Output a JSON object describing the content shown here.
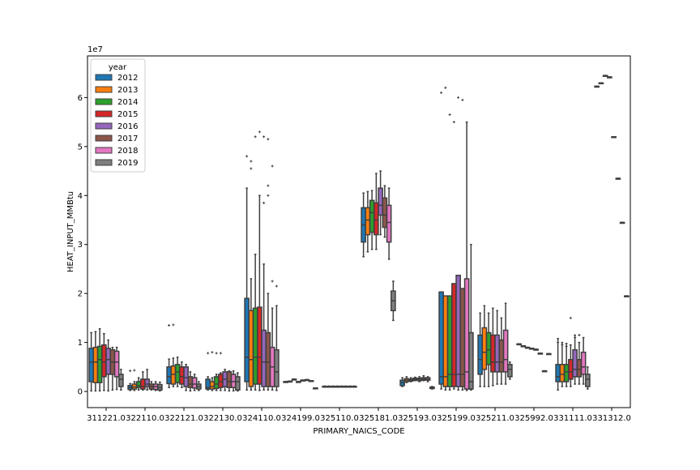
{
  "chart_data": {
    "type": "boxplot",
    "xlabel": "PRIMARY_NAICS_CODE",
    "ylabel": "HEAT_INPUT_MMBtu",
    "y_multiplier_label": "1e7",
    "ylim": [
      -0.33,
      6.85
    ],
    "yticks": [
      0,
      1,
      2,
      3,
      4,
      5,
      6
    ],
    "legend": {
      "title": "year",
      "placement": "top-left",
      "entries": [
        {
          "label": "2012",
          "color": "#1f77b4"
        },
        {
          "label": "2013",
          "color": "#ff7f0e"
        },
        {
          "label": "2014",
          "color": "#2ca02c"
        },
        {
          "label": "2015",
          "color": "#d62728"
        },
        {
          "label": "2016",
          "color": "#9467bd"
        },
        {
          "label": "2017",
          "color": "#8c564b"
        },
        {
          "label": "2018",
          "color": "#e377c2"
        },
        {
          "label": "2019",
          "color": "#7f7f7f"
        }
      ]
    },
    "categories": [
      "311221.0",
      "322110.0",
      "322121.0",
      "322130.0",
      "324110.0",
      "324199.0",
      "325110.0",
      "325181.0",
      "325193.0",
      "325199.0",
      "325211.0",
      "325992.0",
      "331111.0",
      "331312.0"
    ],
    "note_values": "values in units of 1e7 MMBtu; each box = [whisker_low, q1, median, q3, whisker_high]",
    "series": [
      {
        "name": "2012",
        "boxes": [
          [
            0.1,
            2.0,
            6.0,
            8.8,
            12.0
          ],
          [
            0.2,
            0.4,
            0.8,
            1.2,
            1.6
          ],
          [
            0.8,
            1.6,
            3.0,
            5.0,
            6.6
          ],
          [
            0.3,
            0.5,
            0.8,
            2.5,
            3.0
          ],
          [
            0.3,
            2.0,
            7.0,
            19.0,
            41.5
          ],
          [
            2.0,
            2.0,
            2.0,
            2.0,
            2.0
          ],
          [
            0.9,
            0.9,
            1.0,
            1.05,
            1.1
          ],
          [
            27.5,
            30.5,
            34.0,
            37.5,
            40.5
          ],
          [
            1.0,
            1.2,
            1.8,
            2.3,
            2.8
          ],
          [
            0.5,
            1.5,
            3.0,
            20.3,
            20.3
          ],
          [
            1.0,
            3.5,
            6.5,
            11.5,
            16.0
          ],
          [
            9.7,
            9.7,
            9.7,
            9.7,
            9.7
          ],
          [
            0.3,
            2.0,
            3.0,
            5.5,
            10.8
          ],
          [
            62.3,
            62.3,
            62.3,
            62.3,
            62.3
          ]
        ]
      },
      {
        "name": "2013",
        "boxes": [
          [
            0.1,
            1.8,
            6.0,
            9.0,
            12.2
          ],
          [
            0.2,
            0.5,
            0.9,
            1.5,
            2.0
          ],
          [
            1.0,
            1.5,
            3.5,
            5.2,
            6.8
          ],
          [
            0.2,
            0.5,
            1.0,
            2.0,
            2.8
          ],
          [
            0.3,
            1.0,
            6.5,
            16.5,
            23.0
          ],
          [
            2.1,
            2.1,
            2.1,
            2.1,
            2.1
          ],
          [
            0.9,
            0.9,
            1.0,
            1.05,
            1.1
          ],
          [
            28.5,
            32.0,
            35.0,
            37.5,
            40.8
          ],
          [
            1.8,
            2.0,
            2.3,
            2.6,
            3.0
          ],
          [
            0.3,
            1.0,
            3.0,
            19.5,
            19.5
          ],
          [
            1.0,
            4.5,
            8.0,
            13.0,
            17.5
          ],
          [
            9.3,
            9.3,
            9.3,
            9.3,
            9.3
          ],
          [
            1.0,
            2.0,
            3.5,
            5.5,
            10.0
          ],
          [
            63.0,
            63.0,
            63.0,
            63.0,
            63.0
          ]
        ]
      },
      {
        "name": "2014",
        "boxes": [
          [
            0.1,
            1.8,
            6.5,
            9.2,
            12.8
          ],
          [
            0.3,
            0.8,
            1.2,
            2.0,
            2.8
          ],
          [
            1.0,
            1.8,
            4.0,
            5.5,
            7.0
          ],
          [
            0.2,
            0.6,
            1.5,
            3.0,
            3.5
          ],
          [
            0.3,
            1.5,
            7.0,
            17.0,
            28.0
          ],
          [
            2.5,
            2.5,
            2.5,
            2.5,
            2.5
          ],
          [
            0.9,
            0.9,
            1.0,
            1.05,
            1.1
          ],
          [
            29.0,
            32.5,
            36.5,
            39.0,
            41.0
          ],
          [
            2.0,
            2.1,
            2.3,
            2.5,
            2.8
          ],
          [
            0.3,
            1.0,
            3.5,
            19.5,
            19.5
          ],
          [
            1.0,
            5.5,
            8.5,
            12.0,
            16.0
          ],
          [
            9.0,
            9.0,
            9.0,
            9.0,
            9.0
          ],
          [
            1.0,
            2.0,
            4.0,
            5.5,
            9.8
          ],
          [
            64.5,
            64.5,
            64.5,
            64.5,
            64.5
          ]
        ]
      },
      {
        "name": "2015",
        "boxes": [
          [
            0.2,
            3.0,
            6.0,
            9.5,
            11.8
          ],
          [
            0.3,
            0.5,
            1.0,
            2.5,
            4.0
          ],
          [
            0.8,
            1.5,
            3.0,
            5.0,
            6.0
          ],
          [
            0.2,
            0.8,
            2.0,
            3.5,
            3.8
          ],
          [
            0.2,
            1.5,
            7.0,
            17.2,
            40.0
          ],
          [
            2.0,
            2.0,
            2.0,
            2.0,
            2.0
          ],
          [
            0.9,
            0.9,
            1.0,
            1.05,
            1.1
          ],
          [
            29.0,
            32.0,
            35.0,
            38.5,
            44.5
          ],
          [
            2.2,
            2.3,
            2.5,
            2.7,
            2.9
          ],
          [
            0.5,
            1.0,
            3.5,
            22.0,
            22.0
          ],
          [
            1.2,
            4.0,
            6.0,
            11.5,
            17.0
          ],
          [
            8.8,
            8.8,
            8.8,
            8.8,
            8.8
          ],
          [
            1.0,
            2.5,
            4.0,
            6.5,
            9.5
          ],
          [
            64.2,
            64.2,
            64.2,
            64.2,
            64.2
          ]
        ]
      },
      {
        "name": "2016",
        "boxes": [
          [
            0.1,
            3.5,
            6.5,
            8.8,
            10.5
          ],
          [
            0.3,
            1.0,
            1.5,
            2.5,
            4.5
          ],
          [
            0.2,
            1.0,
            2.8,
            5.0,
            5.5
          ],
          [
            0.2,
            1.0,
            2.5,
            4.0,
            4.5
          ],
          [
            0.3,
            1.0,
            6.0,
            12.5,
            26.0
          ],
          [
            2.3,
            2.3,
            2.3,
            2.3,
            2.3
          ],
          [
            0.9,
            0.9,
            1.0,
            1.05,
            1.1
          ],
          [
            32.0,
            36.0,
            38.0,
            41.5,
            45.0
          ],
          [
            2.0,
            2.2,
            2.5,
            2.7,
            3.0
          ],
          [
            0.3,
            1.0,
            3.5,
            23.7,
            23.7
          ],
          [
            1.5,
            4.0,
            6.0,
            11.5,
            16.5
          ],
          [
            8.6,
            8.6,
            8.6,
            8.6,
            8.6
          ],
          [
            1.5,
            3.0,
            4.5,
            8.5,
            11.5
          ],
          [
            52.0,
            52.0,
            52.0,
            52.0,
            52.0
          ]
        ]
      },
      {
        "name": "2017",
        "boxes": [
          [
            0.3,
            3.5,
            6.0,
            8.5,
            9.0
          ],
          [
            0.3,
            0.5,
            1.0,
            1.5,
            2.0
          ],
          [
            0.1,
            0.8,
            1.5,
            3.0,
            4.0
          ],
          [
            0.1,
            0.8,
            2.0,
            4.0,
            4.2
          ],
          [
            0.3,
            1.0,
            6.0,
            12.0,
            20.0
          ],
          [
            2.4,
            2.4,
            2.4,
            2.4,
            2.4
          ],
          [
            0.9,
            0.9,
            1.0,
            1.05,
            1.1
          ],
          [
            31.5,
            33.5,
            36.0,
            39.5,
            42.0
          ],
          [
            2.2,
            2.3,
            2.5,
            2.8,
            3.2
          ],
          [
            0.3,
            1.0,
            3.5,
            21.0,
            21.0
          ],
          [
            1.5,
            4.0,
            6.0,
            10.5,
            15.0
          ],
          [
            7.8,
            7.8,
            7.8,
            7.8,
            7.8
          ],
          [
            1.5,
            3.0,
            4.5,
            6.5,
            10.0
          ],
          [
            43.5,
            43.5,
            43.5,
            43.5,
            43.5
          ]
        ]
      },
      {
        "name": "2018",
        "boxes": [
          [
            0.4,
            3.0,
            6.0,
            8.2,
            9.0
          ],
          [
            0.2,
            0.4,
            1.0,
            1.5,
            2.0
          ],
          [
            0.2,
            0.7,
            1.5,
            2.8,
            3.5
          ],
          [
            0.1,
            0.8,
            2.0,
            3.5,
            4.2
          ],
          [
            0.3,
            1.0,
            5.0,
            9.0,
            17.0
          ],
          [
            2.2,
            2.2,
            2.2,
            2.2,
            2.2
          ],
          [
            0.9,
            0.9,
            1.0,
            1.05,
            1.1
          ],
          [
            27.0,
            30.5,
            34.5,
            38.0,
            41.5
          ],
          [
            2.0,
            2.3,
            2.5,
            2.8,
            3.0
          ],
          [
            0.2,
            0.5,
            4.0,
            23.0,
            55.0
          ],
          [
            1.5,
            4.0,
            6.5,
            12.5,
            18.0
          ],
          [
            4.2,
            4.2,
            4.2,
            4.2,
            4.2
          ],
          [
            1.5,
            3.5,
            5.0,
            8.0,
            11.0
          ],
          [
            34.5,
            34.5,
            34.5,
            34.5,
            34.5
          ]
        ]
      },
      {
        "name": "2019",
        "boxes": [
          [
            0.3,
            1.0,
            2.5,
            3.5,
            4.5
          ],
          [
            0.1,
            0.3,
            0.8,
            1.4,
            1.9
          ],
          [
            0.2,
            0.5,
            1.0,
            1.5,
            2.0
          ],
          [
            0.1,
            0.3,
            2.0,
            3.0,
            3.8
          ],
          [
            0.2,
            1.0,
            4.0,
            8.5,
            17.5
          ],
          [
            0.7,
            0.7,
            0.7,
            0.7,
            0.7
          ],
          [
            0.9,
            0.9,
            1.0,
            1.05,
            1.1
          ],
          [
            14.5,
            16.5,
            18.5,
            20.5,
            22.5
          ],
          [
            0.5,
            0.6,
            0.8,
            0.9,
            1.0
          ],
          [
            0.3,
            0.5,
            2.0,
            12.0,
            30.0
          ],
          [
            2.5,
            3.0,
            4.5,
            5.5,
            6.0
          ],
          [
            7.7,
            7.7,
            7.7,
            7.7,
            7.7
          ],
          [
            0.5,
            1.0,
            2.5,
            3.5,
            5.0
          ],
          [
            19.5,
            19.5,
            19.5,
            19.5,
            19.5
          ]
        ]
      }
    ],
    "outliers": [
      {
        "category": "322110.0",
        "year": "2012",
        "values": [
          4.2
        ]
      },
      {
        "category": "322110.0",
        "year": "2013",
        "values": [
          4.3
        ]
      },
      {
        "category": "322121.0",
        "year": "2012",
        "values": [
          13.5
        ]
      },
      {
        "category": "322121.0",
        "year": "2013",
        "values": [
          13.6
        ]
      },
      {
        "category": "322130.0",
        "year": "2012",
        "values": [
          7.8
        ]
      },
      {
        "category": "322130.0",
        "year": "2013",
        "values": [
          8.0
        ]
      },
      {
        "category": "322130.0",
        "year": "2014",
        "values": [
          7.8
        ]
      },
      {
        "category": "322130.0",
        "year": "2015",
        "values": [
          7.8
        ]
      },
      {
        "category": "324110.0",
        "year": "2012",
        "values": [
          48.0
        ]
      },
      {
        "category": "324110.0",
        "year": "2013",
        "values": [
          47.0,
          45.5
        ]
      },
      {
        "category": "324110.0",
        "year": "2014",
        "values": [
          52.0
        ]
      },
      {
        "category": "324110.0",
        "year": "2015",
        "values": [
          53.0
        ]
      },
      {
        "category": "324110.0",
        "year": "2016",
        "values": [
          52.0,
          38.5
        ]
      },
      {
        "category": "324110.0",
        "year": "2017",
        "values": [
          51.5,
          42.0,
          40.0
        ]
      },
      {
        "category": "324110.0",
        "year": "2018",
        "values": [
          46.0,
          22.5
        ]
      },
      {
        "category": "324110.0",
        "year": "2019",
        "values": [
          21.5
        ]
      },
      {
        "category": "325199.0",
        "year": "2012",
        "values": [
          61.0
        ]
      },
      {
        "category": "325199.0",
        "year": "2013",
        "values": [
          62.0
        ]
      },
      {
        "category": "325199.0",
        "year": "2014",
        "values": [
          56.5
        ]
      },
      {
        "category": "325199.0",
        "year": "2015",
        "values": [
          55.0
        ]
      },
      {
        "category": "325199.0",
        "year": "2016",
        "values": [
          60.0
        ]
      },
      {
        "category": "325199.0",
        "year": "2017",
        "values": [
          59.5
        ]
      },
      {
        "category": "331111.0",
        "year": "2012",
        "values": [
          10.0
        ]
      },
      {
        "category": "331111.0",
        "year": "2013",
        "values": [
          9.5
        ]
      },
      {
        "category": "331111.0",
        "year": "2014",
        "values": [
          9.2
        ]
      },
      {
        "category": "331111.0",
        "year": "2015",
        "values": [
          15.0
        ]
      },
      {
        "category": "331111.0",
        "year": "2016",
        "values": [
          11.0
        ]
      },
      {
        "category": "331111.0",
        "year": "2017",
        "values": [
          11.5
        ]
      }
    ]
  }
}
